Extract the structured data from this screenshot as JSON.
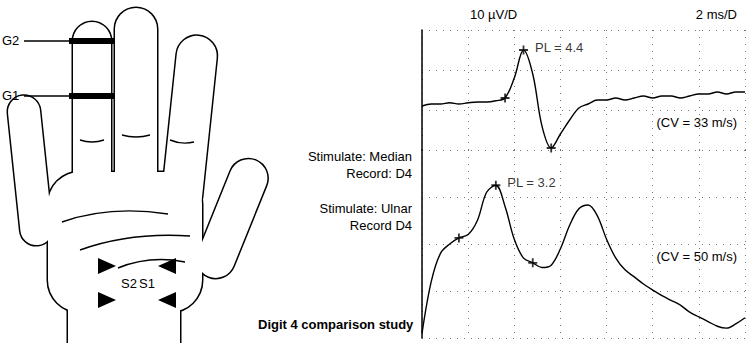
{
  "diagram": {
    "electrode_labels": [
      "G2",
      "G1"
    ],
    "stimulation_labels": [
      "S2",
      "S1"
    ],
    "caption": "Digit 4 comparison study"
  },
  "chart_data": {
    "type": "line",
    "scale_labels": [
      "10 µV/D",
      "2 ms/D"
    ],
    "xlim": [
      0,
      14
    ],
    "xticks": [
      0,
      2,
      4,
      6,
      8,
      10,
      12,
      14
    ],
    "grid": true,
    "tick_labels": false,
    "x": [
      0,
      0.4,
      0.8,
      1.2,
      1.6,
      2,
      2.4,
      2.8,
      3.2,
      3.6,
      4,
      4.4,
      4.8,
      5.2,
      5.6,
      6,
      6.4,
      6.8,
      7.2,
      7.6,
      8,
      8.4,
      8.8,
      9.2,
      9.6,
      10,
      10.4,
      10.8,
      11.2,
      11.6,
      12,
      12.4,
      12.8,
      13.2,
      13.6,
      14
    ],
    "series": [
      {
        "name": "Stimulate: Median",
        "record": "Record: D4",
        "color": "#000000",
        "ylim": [
          -10,
          20
        ],
        "yticks": [
          -10,
          0,
          10,
          20
        ],
        "values": [
          1,
          1.5,
          1.5,
          1.8,
          1.5,
          1.8,
          2,
          2,
          2.3,
          3,
          8,
          15,
          9,
          -4,
          -9.5,
          -6,
          -2.5,
          0.5,
          1.5,
          2.5,
          2.5,
          3,
          2.5,
          3,
          3.5,
          3,
          3.5,
          3.5,
          3,
          3.5,
          4,
          4,
          4.5,
          4,
          4.5,
          4.5
        ],
        "peak": [
          4.4,
          15
        ],
        "annotation": "PL = 4.4",
        "markers": [
          [
            3.6,
            3
          ],
          [
            5.6,
            -9.5
          ]
        ],
        "cv_label": "(CV = 33 m/s)"
      },
      {
        "name": "Stimulate: Ulnar",
        "record": "Record D4",
        "color": "#000000",
        "ylim": [
          -20,
          20
        ],
        "yticks": [
          -20,
          -10,
          0,
          10,
          20
        ],
        "values": [
          -19,
          -8,
          -2,
          0,
          1.3,
          2,
          5,
          11,
          12.5,
          8,
          1,
          -3,
          -4,
          -5,
          -4.5,
          -1,
          4,
          7.5,
          8.3,
          6,
          1,
          -3,
          -5.5,
          -7,
          -8.5,
          -9.8,
          -11,
          -12,
          -13,
          -14.5,
          -15.5,
          -16.5,
          -17.5,
          -17.9,
          -17,
          -15.7
        ],
        "peak": [
          3.2,
          12.5
        ],
        "annotation": "PL = 3.2",
        "markers": [
          [
            1.6,
            1.3
          ],
          [
            4.8,
            -4
          ]
        ],
        "cv_label": "(CV = 50 m/s)"
      }
    ]
  }
}
